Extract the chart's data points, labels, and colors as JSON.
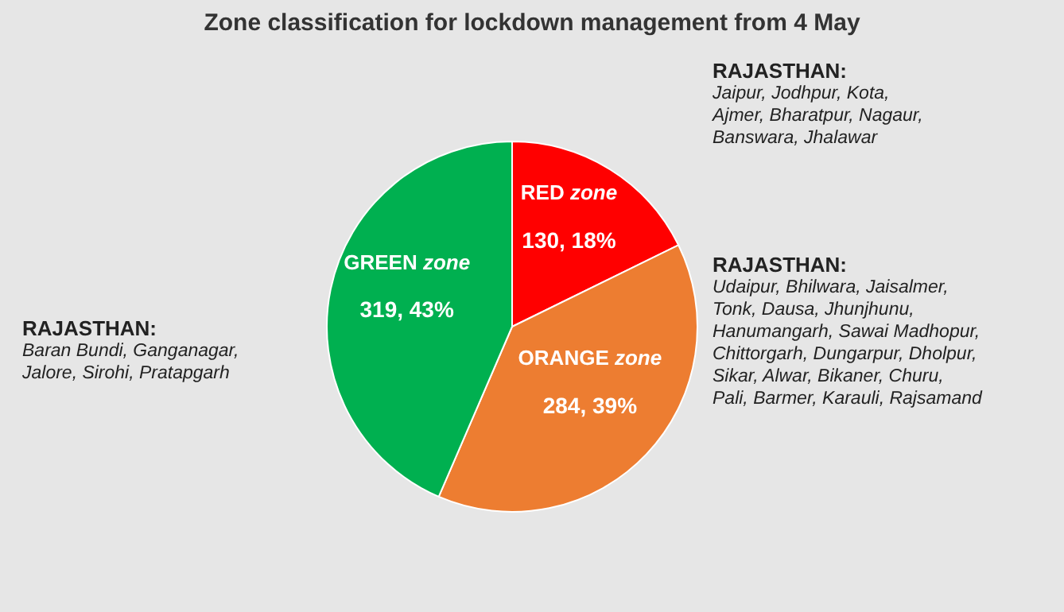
{
  "chart_data": {
    "type": "pie",
    "title": "Zone classification for lockdown management from 4 May",
    "categories": [
      "RED zone",
      "ORANGE zone",
      "GREEN zone"
    ],
    "values": [
      130,
      284,
      319
    ],
    "colors": [
      "#ff0000",
      "#ed7d31",
      "#00b050"
    ],
    "value_labels": [
      "130, 18%",
      "284, 39%",
      "319, 43%"
    ],
    "legend": false,
    "annotations": [
      "RAJASTHAN:\nJaipur, Jodhpur, Kota,\nAjmer, Bharatpur, Nagaur,\nBanswara, Jhalawar",
      "RAJASTHAN:\nUdaipur, Bhilwara, Jaisalmer,\nTonk, Dausa, Jhunjhunu,\nHanumangarh, Sawai Madhopur,\nChittorgarh, Dungarpur, Dholpur,\nSikar, Alwar, Bikaner, Churu,\nPali, Barmer, Karauli, Rajsamand",
      "RAJASTHAN:\nBaran Bundi, Ganganagar,\nJalore, Sirohi, Pratapgarh"
    ]
  }
}
